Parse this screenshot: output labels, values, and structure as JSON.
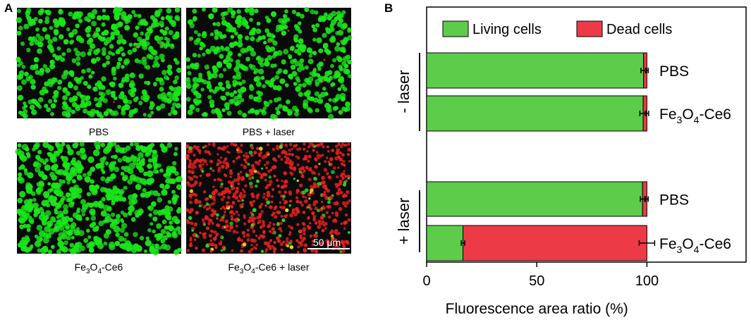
{
  "panel_a": {
    "letter": "A",
    "scale_bar_label": "50 μm",
    "images": [
      {
        "caption": "PBS",
        "caption_main": "PBS",
        "caption_sub": "",
        "caption_tail": "",
        "style": "live"
      },
      {
        "caption": "PBS + laser",
        "caption_main": "PBS + laser",
        "caption_sub": "",
        "caption_tail": "",
        "style": "live"
      },
      {
        "caption": "Fe3O4-Ce6",
        "caption_main": "Fe",
        "caption_sub": "3",
        "caption_mid": "O",
        "caption_sub2": "4",
        "caption_tail": "-Ce6",
        "style": "live-clumped"
      },
      {
        "caption": "Fe3O4-Ce6 + laser",
        "caption_main": "Fe",
        "caption_sub": "3",
        "caption_mid": "O",
        "caption_sub2": "4",
        "caption_tail": "-Ce6 + laser",
        "style": "dead"
      }
    ],
    "colors": {
      "live": "#19e619",
      "dead": "#e61e1e",
      "background": "#0a0a0a"
    }
  },
  "chart_data": {
    "type": "bar",
    "orientation": "horizontal",
    "stacked": true,
    "panel_letter": "B",
    "xlabel": "Fluorescence area ratio (%)",
    "ylabel": "",
    "xlim": [
      0,
      145
    ],
    "xticks": [
      0,
      50,
      100
    ],
    "grid": false,
    "legend_position": "top",
    "groups": [
      {
        "label": "- laser",
        "categories": [
          0,
          1
        ]
      },
      {
        "label": "+ laser",
        "categories": [
          2,
          3
        ]
      }
    ],
    "categories": [
      "PBS",
      "Fe3O4-Ce6",
      "PBS",
      "Fe3O4-Ce6"
    ],
    "series": [
      {
        "name": "Living cells",
        "color": "#5dcc4a",
        "values": [
          98.5,
          98.3,
          98.0,
          16.5
        ],
        "errors": [
          1.2,
          1.5,
          1.0,
          0.8
        ]
      },
      {
        "name": "Dead cells",
        "color": "#ec3a47",
        "values": [
          1.5,
          1.7,
          2.0,
          83.5
        ],
        "errors": [
          0.6,
          0.8,
          0.6,
          3.5
        ]
      }
    ]
  }
}
